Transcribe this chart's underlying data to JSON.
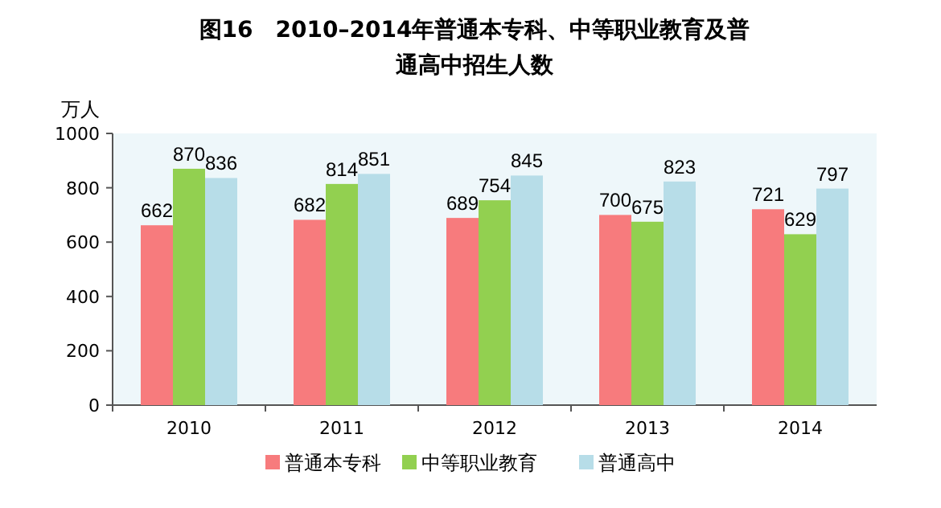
{
  "chart_data": {
    "type": "bar",
    "title": "图16　2010–2014年普通本专科、中等职业教育及普通高中招生人数",
    "ylabel": "万人",
    "categories": [
      "2010",
      "2011",
      "2012",
      "2013",
      "2014"
    ],
    "series": [
      {
        "name": "普通本专科",
        "color": "#f77b7d",
        "values": [
          662,
          682,
          689,
          700,
          721
        ]
      },
      {
        "name": "中等职业教育",
        "color": "#92d050",
        "values": [
          870,
          814,
          754,
          675,
          629
        ]
      },
      {
        "name": "普通高中",
        "color": "#b7dde8",
        "values": [
          836,
          851,
          845,
          823,
          797
        ]
      }
    ],
    "ylim": [
      0,
      1000
    ],
    "yticks": [
      0,
      200,
      400,
      600,
      800,
      1000
    ],
    "data_labels": true,
    "legend": "bottom",
    "grid": false
  }
}
